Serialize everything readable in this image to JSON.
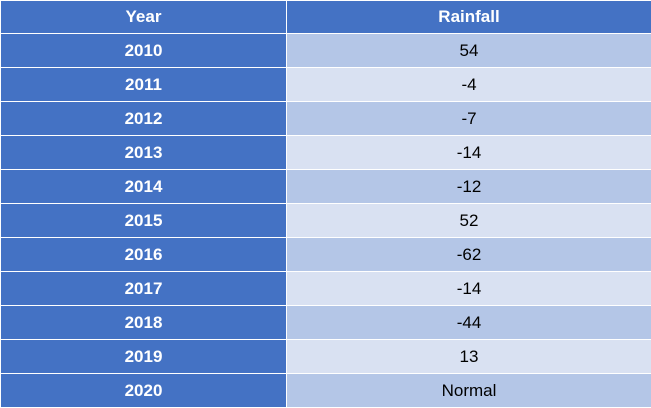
{
  "table": {
    "header": [
      "Year",
      "Rainfall"
    ],
    "rows": [
      [
        2010,
        54
      ],
      [
        2011,
        -4
      ],
      [
        2012,
        -7
      ],
      [
        2013,
        -14
      ],
      [
        2014,
        -12
      ],
      [
        2015,
        52
      ],
      [
        2016,
        -62
      ],
      [
        2017,
        -14
      ],
      [
        2018,
        -44
      ],
      [
        2019,
        13
      ],
      [
        2020,
        "Normal"
      ]
    ]
  }
}
